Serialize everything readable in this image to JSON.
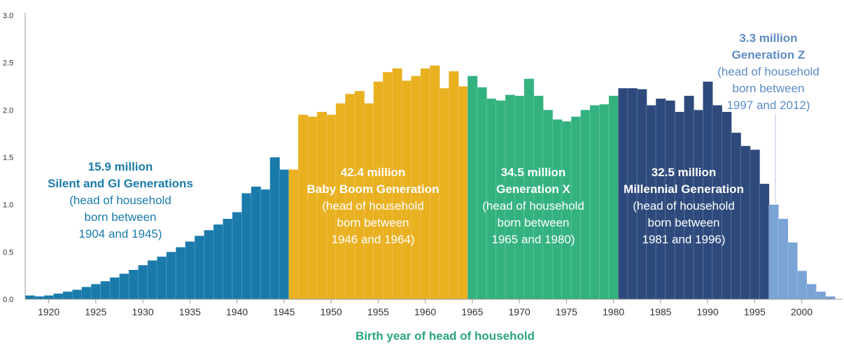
{
  "chart_data": {
    "type": "bar",
    "xlabel": "Birth year of head of household",
    "ylabel": "",
    "ylim": [
      0,
      3.0
    ],
    "yticks": [
      "0.0",
      "0.5",
      "1.0",
      "1.5",
      "2.0",
      "2.5",
      "3.0"
    ],
    "xticks": [
      "1920",
      "1925",
      "1930",
      "1935",
      "1940",
      "1945",
      "1950",
      "1955",
      "1960",
      "1965",
      "1970",
      "1975",
      "1980",
      "1985",
      "1990",
      "1995",
      "2000"
    ],
    "grid": false,
    "x": [
      1918,
      1919,
      1920,
      1921,
      1922,
      1923,
      1924,
      1925,
      1926,
      1927,
      1928,
      1929,
      1930,
      1931,
      1932,
      1933,
      1934,
      1935,
      1936,
      1937,
      1938,
      1939,
      1940,
      1941,
      1942,
      1943,
      1944,
      1945,
      1946,
      1947,
      1948,
      1949,
      1950,
      1951,
      1952,
      1953,
      1954,
      1955,
      1956,
      1957,
      1958,
      1959,
      1960,
      1961,
      1962,
      1963,
      1964,
      1965,
      1966,
      1967,
      1968,
      1969,
      1970,
      1971,
      1972,
      1973,
      1974,
      1975,
      1976,
      1977,
      1978,
      1979,
      1980,
      1981,
      1982,
      1983,
      1984,
      1985,
      1986,
      1987,
      1988,
      1989,
      1990,
      1991,
      1992,
      1993,
      1994,
      1995,
      1996,
      1997,
      1998,
      1999,
      2000,
      2001,
      2002,
      2003
    ],
    "values": [
      0.04,
      0.03,
      0.04,
      0.06,
      0.08,
      0.1,
      0.13,
      0.16,
      0.19,
      0.23,
      0.27,
      0.31,
      0.36,
      0.41,
      0.45,
      0.5,
      0.55,
      0.61,
      0.67,
      0.73,
      0.79,
      0.85,
      0.92,
      1.12,
      1.19,
      1.16,
      1.5,
      1.37,
      1.37,
      1.95,
      1.93,
      1.98,
      1.95,
      2.07,
      2.17,
      2.2,
      2.07,
      2.3,
      2.4,
      2.44,
      2.31,
      2.36,
      2.44,
      2.47,
      2.23,
      2.41,
      2.25,
      2.36,
      2.24,
      2.12,
      2.1,
      2.16,
      2.15,
      2.33,
      2.15,
      2.0,
      1.9,
      1.88,
      1.93,
      2.0,
      2.05,
      2.06,
      2.15,
      2.23,
      2.23,
      2.22,
      2.05,
      2.12,
      2.1,
      1.98,
      2.15,
      2.0,
      2.3,
      2.05,
      1.98,
      1.76,
      1.62,
      1.58,
      1.22,
      1.0,
      0.85,
      0.6,
      0.3,
      0.16,
      0.08,
      0.03
    ],
    "generations": [
      {
        "name": "Silent and GI Generations",
        "from": 1918,
        "to": 1945,
        "color": "#1a7bab",
        "label": [
          "15.9 million",
          "Silent and GI Generations",
          "(head of household",
          "born between",
          "1904 and 1945)"
        ]
      },
      {
        "name": "Baby Boom Generation",
        "from": 1946,
        "to": 1964,
        "color": "#e9b020",
        "label": [
          "42.4 million",
          "Baby Boom Generation",
          "(head of household",
          "born between",
          "1946 and 1964)"
        ]
      },
      {
        "name": "Generation X",
        "from": 1965,
        "to": 1980,
        "color": "#33b27f",
        "label": [
          "34.5 million",
          "Generation X",
          "(head of household",
          "born between",
          "1965 and 1980)"
        ]
      },
      {
        "name": "Millennial Generation",
        "from": 1981,
        "to": 1996,
        "color": "#2e4a7c",
        "label": [
          "32.5 million",
          "Millennial Generation",
          "(head of household",
          "born between",
          "1981 and 1996)"
        ]
      },
      {
        "name": "Generation Z",
        "from": 1997,
        "to": 2003,
        "color": "#7aa3d6",
        "label": [
          "3.3 million",
          "Generation Z",
          "(head of household",
          "born between",
          "1997 and 2012)"
        ]
      }
    ]
  },
  "colors": {
    "axis": "#999999",
    "xlabel": "#2ba57a",
    "silent_label": "#1a7bab",
    "genz_label": "#5d8bc4",
    "dark_label_outline": "#ffffff"
  }
}
